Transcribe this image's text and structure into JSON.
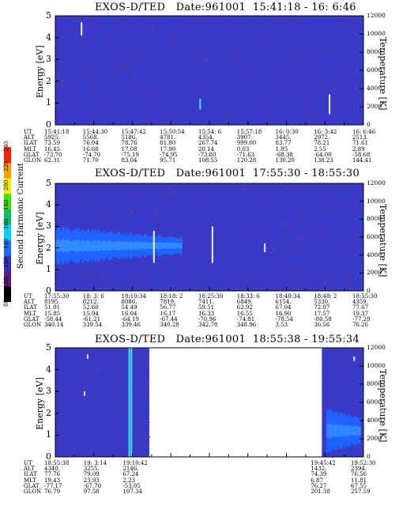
{
  "colors": {
    "background": "#3a3ac8",
    "noise": "#6a2a8e",
    "band": "#1e64ff",
    "band_core": "#3a9cff",
    "spike_white": "#f0f0f0",
    "spike_yellow": "#e8e060",
    "spike_cyan": "#40e0f0"
  },
  "colorbar": {
    "label": "Second Harmonic Current",
    "ticks": [
      "80",
      "100",
      "120",
      "140",
      "160",
      "180",
      "200",
      "220",
      "240"
    ],
    "colors": [
      "#000000",
      "#5a1a7e",
      "#3030c8",
      "#1e6cff",
      "#00d0ff",
      "#00c060",
      "#40e000",
      "#f0f000",
      "#ffa000",
      "#ff2000"
    ]
  },
  "ephem_headers": [
    "UT",
    "ALT",
    "ILAT",
    "MLT",
    "GLAT",
    "GLON"
  ],
  "chart_data": [
    {
      "type": "heatmap",
      "title": "EXOS-D/TED   Date:961001  15:41:18 - 16: 6:46",
      "ylabel": "Energy [eV]",
      "y2label": "Temperature [K]",
      "ylim": [
        0,
        5
      ],
      "y2lim": [
        0,
        12000
      ],
      "yticks": [
        "0",
        "1",
        "2",
        "3",
        "4",
        "5"
      ],
      "y2ticks": [
        "0",
        "2000",
        "4000",
        "6000",
        "8000",
        "10000",
        "12000"
      ],
      "x_frac_range": [
        0,
        1
      ],
      "bands": [],
      "spikes": [
        {
          "x": 0.085,
          "y0": 4.1,
          "y1": 4.7,
          "color": "white"
        },
        {
          "x": 0.47,
          "y0": 0.7,
          "y1": 1.2,
          "color": "cyan"
        },
        {
          "x": 0.89,
          "y0": 0.5,
          "y1": 1.4,
          "color": "white"
        }
      ],
      "ephemeris": [
        [
          "15:41:18",
          "15:44:30",
          "15:47:42",
          "15:50:54",
          "15:54: 6",
          "15:57:18",
          "16: 0:30",
          "16: 3:42",
          "16: 6:46"
        ],
        [
          "5925.",
          "5568.",
          "5186.",
          "4781.",
          "4354.",
          "3907.",
          "3445.",
          "2972.",
          "2513."
        ],
        [
          "73.59",
          "76.04",
          "78.76",
          "81.80",
          "267.74",
          "999.00",
          "83.77",
          "78.21",
          "71.61"
        ],
        [
          "16.45",
          "16.68",
          "17.08",
          "17.90",
          "20.14",
          "0.03",
          "1.85",
          "2.55",
          "2.89"
        ],
        [
          "-73.70",
          "-74.70",
          "-75.19",
          "-74.95",
          "-73.80",
          "-71.63",
          "-68.38",
          "-64.00",
          "-58.68"
        ],
        [
          "62.31",
          "71.70",
          "83.04",
          "95.71",
          "108.55",
          "120.28",
          "130.20",
          "138.23",
          "144.41"
        ]
      ]
    },
    {
      "type": "heatmap",
      "title": "EXOS-D/TED   Date:961001  17:55:30 - 18:55:30",
      "ylabel": "Energy [eV]",
      "y2label": "Temperature [K]",
      "ylim": [
        0,
        5
      ],
      "y2lim": [
        0,
        12000
      ],
      "yticks": [
        "0",
        "1",
        "2",
        "3",
        "4",
        "5"
      ],
      "y2ticks": [
        "0",
        "2000",
        "4000",
        "6000",
        "8000",
        "10000",
        "12000"
      ],
      "x_frac_range": [
        0,
        1
      ],
      "bands": [
        {
          "x0": 0.0,
          "x1": 0.41,
          "y_center": 2.1,
          "half_width": 0.8,
          "taper_to": 0.45
        }
      ],
      "spikes": [
        {
          "x": 0.32,
          "y0": 1.3,
          "y1": 2.8,
          "color": "white"
        },
        {
          "x": 0.51,
          "y0": 1.3,
          "y1": 3.0,
          "color": "white"
        },
        {
          "x": 0.68,
          "y0": 1.8,
          "y1": 2.2,
          "color": "white"
        }
      ],
      "ephemeris": [
        [
          "17:55:30",
          "18: 3: 6",
          "18:10:34",
          "18:18: 2",
          "18:25:30",
          "18:33: 6",
          "18:40:34",
          "18:48: 2",
          "18:55:30"
        ],
        [
          "8195.",
          "8212.",
          "8086.",
          "7819.",
          "7411.",
          "6849.",
          "6154.",
          "5330.",
          "4359."
        ],
        [
          "51.01",
          "52.60",
          "54.49",
          "56.77",
          "59.51",
          "62.92",
          "67.04",
          "72.07",
          "77.67"
        ],
        [
          "15.85",
          "15.94",
          "16.04",
          "16.17",
          "16.33",
          "16.55",
          "16.90",
          "17.57",
          "19.37"
        ],
        [
          "-58.44",
          "-61.21",
          "-64.19",
          "-67.44",
          "-70.96",
          "-74.81",
          "-78.54",
          "-80.58",
          "-77.29"
        ],
        [
          "340.14",
          "339.54",
          "339.46",
          "340.28",
          "342.78",
          "348.96",
          "3.53",
          "36.56",
          "76.26"
        ]
      ]
    },
    {
      "type": "heatmap",
      "title": "EXOS-D/TED   Date:961001  18:55:38 - 19:55:34",
      "ylabel": "Energy [eV]",
      "y2label": "Temperature [K]",
      "ylim": [
        0,
        5
      ],
      "y2lim": [
        0,
        12000
      ],
      "yticks": [
        "0",
        "1",
        "2",
        "3",
        "4",
        "5"
      ],
      "y2ticks": [
        "0",
        "2000",
        "4000",
        "6000",
        "8000",
        "10000",
        "12000"
      ],
      "data_segments": [
        [
          0.0,
          0.305
        ],
        [
          0.865,
          1.0
        ]
      ],
      "bands": [
        {
          "x0": 0.88,
          "x1": 0.99,
          "y_center": 1.2,
          "half_width": 0.9,
          "taper_to": 0.6
        }
      ],
      "spikes": [
        {
          "x": 0.24,
          "y0": 0.0,
          "y1": 5.2,
          "color": "cyan"
        },
        {
          "x": 0.247,
          "y0": 0.0,
          "y1": 5.2,
          "color": "cyan"
        },
        {
          "x": 0.105,
          "y0": 4.5,
          "y1": 4.7,
          "color": "yellow"
        },
        {
          "x": 0.095,
          "y0": 2.8,
          "y1": 3.0,
          "color": "yellow"
        },
        {
          "x": 0.97,
          "y0": 4.4,
          "y1": 4.6,
          "color": "white"
        }
      ],
      "ephemeris_left": [
        [
          "18:55:38",
          "19: 3:14",
          "19:10:42"
        ],
        [
          "4340.",
          "3255.",
          "2146."
        ],
        [
          "77.76",
          "79.09",
          "67.24"
        ],
        [
          "19.43",
          "23.93",
          "2.23"
        ],
        [
          "-77.17",
          "-67.70",
          "-53.05"
        ],
        [
          "76.79",
          "97.58",
          "107.34"
        ]
      ],
      "ephemeris_right": [
        [
          "19:45:42",
          "19:52:30"
        ],
        [
          "1432.",
          "2394."
        ],
        [
          "74.39",
          "76.56"
        ],
        [
          "6.87",
          "11.81"
        ],
        [
          "76.27",
          "67.55"
        ],
        [
          "201.38",
          "257.59"
        ]
      ]
    }
  ]
}
